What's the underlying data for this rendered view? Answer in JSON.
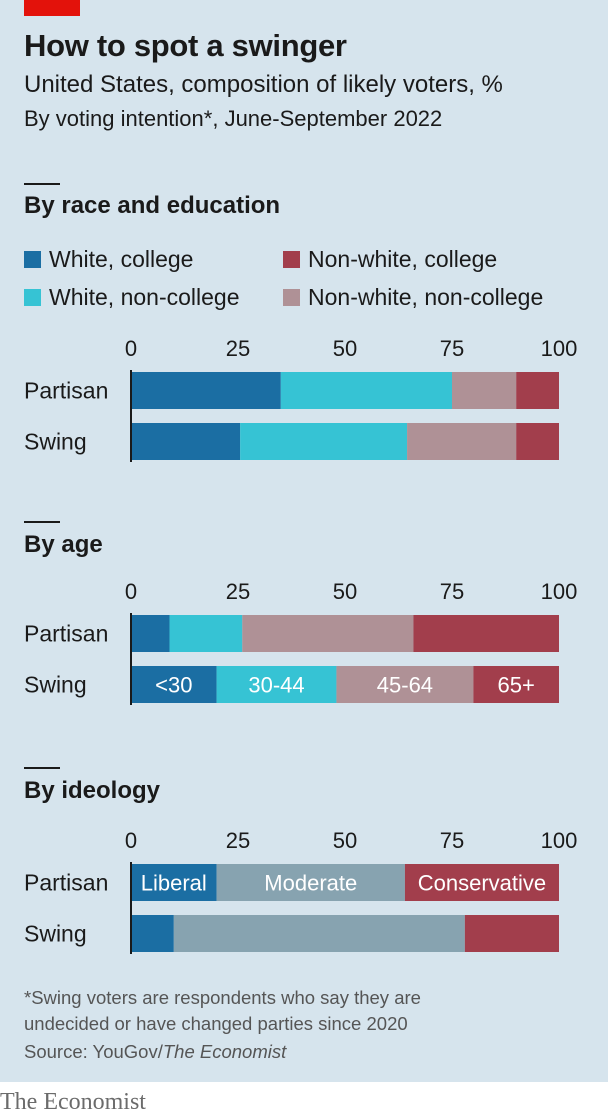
{
  "header": {
    "title": "How to spot a swinger",
    "subtitle": "United States, composition of likely voters, %",
    "subtitle2": "By voting intention*, June-September 2022"
  },
  "colors": {
    "background": "#d6e4ed",
    "accent_red": "#e3120b",
    "dark_blue": "#1b6ea3",
    "cyan": "#36c3d4",
    "mauve": "#af9196",
    "crimson": "#a23e4c",
    "slate": "#87a3b0"
  },
  "chart_data": [
    {
      "type": "bar",
      "stacked": true,
      "orientation": "horizontal",
      "title": "By race and education",
      "categories": [
        "Partisan",
        "Swing"
      ],
      "xlim": [
        0,
        100
      ],
      "ticks": [
        "0",
        "25",
        "50",
        "75",
        "100"
      ],
      "legend": "top",
      "series": [
        {
          "name": "White, college",
          "color": "#1b6ea3",
          "values": [
            35,
            25.5
          ]
        },
        {
          "name": "White, non-college",
          "color": "#36c3d4",
          "values": [
            40,
            39
          ]
        },
        {
          "name": "Non-white, non-college",
          "color": "#af9196",
          "values": [
            15,
            25.5
          ]
        },
        {
          "name": "Non-white, college",
          "color": "#a23e4c",
          "values": [
            10,
            10
          ]
        }
      ]
    },
    {
      "type": "bar",
      "stacked": true,
      "orientation": "horizontal",
      "title": "By age",
      "categories": [
        "Partisan",
        "Swing"
      ],
      "xlim": [
        0,
        100
      ],
      "ticks": [
        "0",
        "25",
        "50",
        "75",
        "100"
      ],
      "legend": "inline-labels",
      "series": [
        {
          "name": "<30",
          "color": "#1b6ea3",
          "values": [
            9,
            20
          ]
        },
        {
          "name": "30-44",
          "color": "#36c3d4",
          "values": [
            17,
            28
          ]
        },
        {
          "name": "45-64",
          "color": "#af9196",
          "values": [
            40,
            32
          ]
        },
        {
          "name": "65+",
          "color": "#a23e4c",
          "values": [
            34,
            20
          ]
        }
      ]
    },
    {
      "type": "bar",
      "stacked": true,
      "orientation": "horizontal",
      "title": "By ideology",
      "categories": [
        "Partisan",
        "Swing"
      ],
      "xlim": [
        0,
        100
      ],
      "ticks": [
        "0",
        "25",
        "50",
        "75",
        "100"
      ],
      "legend": "inline-labels",
      "series": [
        {
          "name": "Liberal",
          "color": "#1b6ea3",
          "values": [
            20,
            10
          ]
        },
        {
          "name": "Moderate",
          "color": "#87a3b0",
          "values": [
            44,
            68
          ]
        },
        {
          "name": "Conservative",
          "color": "#a23e4c",
          "values": [
            36,
            22
          ]
        }
      ]
    }
  ],
  "legend1": {
    "items": [
      {
        "label": "White, college",
        "color": "#1b6ea3"
      },
      {
        "label": "Non-white, college",
        "color": "#a23e4c"
      },
      {
        "label": "White, non-college",
        "color": "#36c3d4"
      },
      {
        "label": "Non-white, non-college",
        "color": "#af9196"
      }
    ]
  },
  "footnote": {
    "line1": "*Swing voters are respondents who say they are",
    "line2": "undecided or have changed parties since 2020",
    "source_prefix": "Source: YouGov/",
    "source_italic": "The Economist"
  },
  "brand": "The Economist"
}
